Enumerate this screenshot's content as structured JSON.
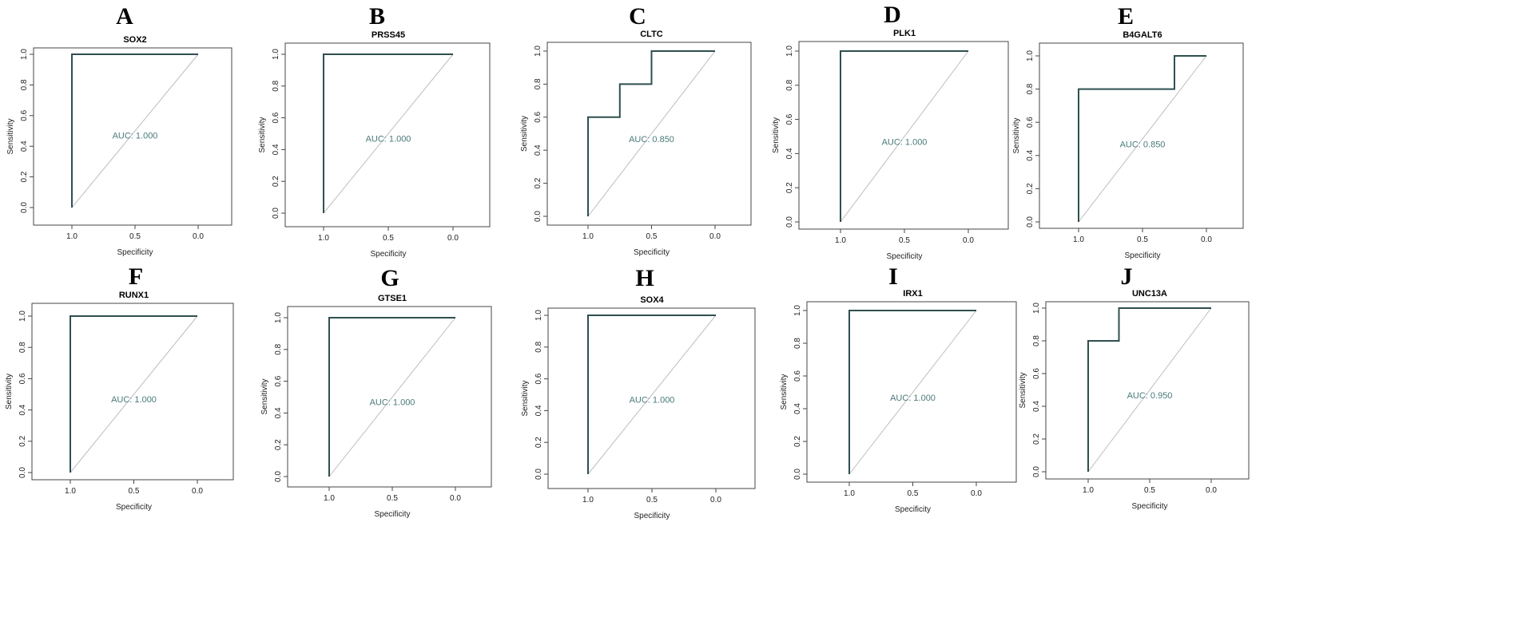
{
  "figure": {
    "panels": [
      {
        "letter": "A"
      },
      {
        "letter": "B"
      },
      {
        "letter": "C"
      },
      {
        "letter": "D"
      },
      {
        "letter": "E"
      },
      {
        "letter": "F"
      },
      {
        "letter": "G"
      },
      {
        "letter": "H"
      },
      {
        "letter": "I"
      },
      {
        "letter": "J"
      }
    ]
  },
  "chart_data": [
    {
      "type": "line",
      "title": "SOX2",
      "xlabel": "Specificity",
      "ylabel": "Sensitivity",
      "x_reversed": true,
      "xlim": [
        1.0,
        0.0
      ],
      "ylim": [
        0.0,
        1.0
      ],
      "xticks": [
        "1.0",
        "0.5",
        "0.0"
      ],
      "yticks": [
        "0.0",
        "0.2",
        "0.4",
        "0.6",
        "0.8",
        "1.0"
      ],
      "auc_text": "AUC: 1.000",
      "specificity": [
        1.0,
        1.0,
        0.0
      ],
      "sensitivity": [
        0.0,
        1.0,
        1.0
      ]
    },
    {
      "type": "line",
      "title": "PRSS45",
      "xlabel": "Specificity",
      "ylabel": "Sensitivity",
      "x_reversed": true,
      "xlim": [
        1.0,
        0.0
      ],
      "ylim": [
        0.0,
        1.0
      ],
      "xticks": [
        "1.0",
        "0.5",
        "0.0"
      ],
      "yticks": [
        "0.0",
        "0.2",
        "0.4",
        "0.6",
        "0.8",
        "1.0"
      ],
      "auc_text": "AUC: 1.000",
      "specificity": [
        1.0,
        1.0,
        0.0
      ],
      "sensitivity": [
        0.0,
        1.0,
        1.0
      ]
    },
    {
      "type": "line",
      "title": "CLTC",
      "xlabel": "Specificity",
      "ylabel": "Sensitivity",
      "x_reversed": true,
      "xlim": [
        1.0,
        0.0
      ],
      "ylim": [
        0.0,
        1.0
      ],
      "xticks": [
        "1.0",
        "0.5",
        "0.0"
      ],
      "yticks": [
        "0.0",
        "0.2",
        "0.4",
        "0.6",
        "0.8",
        "1.0"
      ],
      "auc_text": "AUC: 0.850",
      "specificity": [
        1.0,
        1.0,
        0.75,
        0.75,
        0.5,
        0.5,
        0.0
      ],
      "sensitivity": [
        0.0,
        0.6,
        0.6,
        0.8,
        0.8,
        1.0,
        1.0
      ]
    },
    {
      "type": "line",
      "title": "PLK1",
      "xlabel": "Specificity",
      "ylabel": "Sensitivity",
      "x_reversed": true,
      "xlim": [
        1.0,
        0.0
      ],
      "ylim": [
        0.0,
        1.0
      ],
      "xticks": [
        "1.0",
        "0.5",
        "0.0"
      ],
      "yticks": [
        "0.0",
        "0.2",
        "0.4",
        "0.6",
        "0.8",
        "1.0"
      ],
      "auc_text": "AUC: 1.000",
      "specificity": [
        1.0,
        1.0,
        0.0
      ],
      "sensitivity": [
        0.0,
        1.0,
        1.0
      ]
    },
    {
      "type": "line",
      "title": "B4GALT6",
      "xlabel": "Specificity",
      "ylabel": "Sensitivity",
      "x_reversed": true,
      "xlim": [
        1.0,
        0.0
      ],
      "ylim": [
        0.0,
        1.0
      ],
      "xticks": [
        "1.0",
        "0.5",
        "0.0"
      ],
      "yticks": [
        "0.0",
        "0.2",
        "0.4",
        "0.6",
        "0.8",
        "1.0"
      ],
      "auc_text": "AUC: 0.850",
      "specificity": [
        1.0,
        1.0,
        0.25,
        0.25,
        0.0
      ],
      "sensitivity": [
        0.0,
        0.8,
        0.8,
        1.0,
        1.0
      ]
    },
    {
      "type": "line",
      "title": "RUNX1",
      "xlabel": "Specificity",
      "ylabel": "Sensitivity",
      "x_reversed": true,
      "xlim": [
        1.0,
        0.0
      ],
      "ylim": [
        0.0,
        1.0
      ],
      "xticks": [
        "1.0",
        "0.5",
        "0.0"
      ],
      "yticks": [
        "0.0",
        "0.2",
        "0.4",
        "0.6",
        "0.8",
        "1.0"
      ],
      "auc_text": "AUC: 1.000",
      "specificity": [
        1.0,
        1.0,
        0.0
      ],
      "sensitivity": [
        0.0,
        1.0,
        1.0
      ]
    },
    {
      "type": "line",
      "title": "GTSE1",
      "xlabel": "Specificity",
      "ylabel": "Sensitivity",
      "x_reversed": true,
      "xlim": [
        1.0,
        0.0
      ],
      "ylim": [
        0.0,
        1.0
      ],
      "xticks": [
        "1.0",
        "0.5",
        "0.0"
      ],
      "yticks": [
        "0.0",
        "0.2",
        "0.4",
        "0.6",
        "0.8",
        "1.0"
      ],
      "auc_text": "AUC: 1.000",
      "specificity": [
        1.0,
        1.0,
        0.0
      ],
      "sensitivity": [
        0.0,
        1.0,
        1.0
      ]
    },
    {
      "type": "line",
      "title": "SOX4",
      "xlabel": "Specificity",
      "ylabel": "Sensitivity",
      "x_reversed": true,
      "xlim": [
        1.0,
        0.0
      ],
      "ylim": [
        0.0,
        1.0
      ],
      "xticks": [
        "1.0",
        "0.5",
        "0.0"
      ],
      "yticks": [
        "0.0",
        "0.2",
        "0.4",
        "0.6",
        "0.8",
        "1.0"
      ],
      "auc_text": "AUC: 1.000",
      "specificity": [
        1.0,
        1.0,
        0.0
      ],
      "sensitivity": [
        0.0,
        1.0,
        1.0
      ]
    },
    {
      "type": "line",
      "title": "IRX1",
      "xlabel": "Specificity",
      "ylabel": "Sensitivity",
      "x_reversed": true,
      "xlim": [
        1.0,
        0.0
      ],
      "ylim": [
        0.0,
        1.0
      ],
      "xticks": [
        "1.0",
        "0.5",
        "0.0"
      ],
      "yticks": [
        "0.0",
        "0.2",
        "0.4",
        "0.6",
        "0.8",
        "1.0"
      ],
      "auc_text": "AUC: 1.000",
      "specificity": [
        1.0,
        1.0,
        0.0
      ],
      "sensitivity": [
        0.0,
        1.0,
        1.0
      ]
    },
    {
      "type": "line",
      "title": "UNC13A",
      "xlabel": "Specificity",
      "ylabel": "Sensitivity",
      "x_reversed": true,
      "xlim": [
        1.0,
        0.0
      ],
      "ylim": [
        0.0,
        1.0
      ],
      "xticks": [
        "1.0",
        "0.5",
        "0.0"
      ],
      "yticks": [
        "0.0",
        "0.2",
        "0.4",
        "0.6",
        "0.8",
        "1.0"
      ],
      "auc_text": "AUC: 0.950",
      "specificity": [
        1.0,
        1.0,
        0.75,
        0.75,
        0.0
      ],
      "sensitivity": [
        0.0,
        0.8,
        0.8,
        1.0,
        1.0
      ]
    }
  ]
}
